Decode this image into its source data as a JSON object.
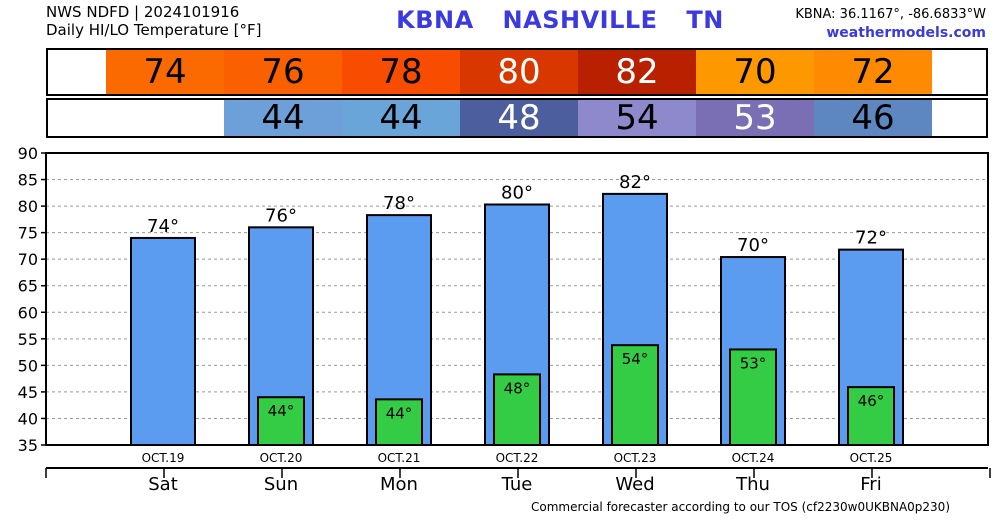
{
  "header": {
    "line1": "NWS NDFD | 2024101916",
    "line2": "Daily HI/LO Temperature [°F]",
    "station": "KBNA",
    "city": "NASHVILLE",
    "state": "TN",
    "coords": "KBNA: 36.1167°, -86.6833°W",
    "site": "weathermodels.com"
  },
  "hi_strip": [
    {
      "value": "74",
      "color": "#fa6a00",
      "text_color": "#000000"
    },
    {
      "value": "76",
      "color": "#fa6000",
      "text_color": "#000000"
    },
    {
      "value": "78",
      "color": "#f84c00",
      "text_color": "#000000"
    },
    {
      "value": "80",
      "color": "#d83800",
      "text_color": "#ffffff"
    },
    {
      "value": "82",
      "color": "#b82000",
      "text_color": "#ffffff"
    },
    {
      "value": "70",
      "color": "#fd9800",
      "text_color": "#000000"
    },
    {
      "value": "72",
      "color": "#fd8a00",
      "text_color": "#000000"
    }
  ],
  "lo_strip": [
    {
      "value": "",
      "color": "#ffffff",
      "text_color": "#000000"
    },
    {
      "value": "44",
      "color": "#6d9fd8",
      "text_color": "#000000"
    },
    {
      "value": "44",
      "color": "#6aa5da",
      "text_color": "#000000"
    },
    {
      "value": "48",
      "color": "#4d5e9e",
      "text_color": "#ffffff"
    },
    {
      "value": "54",
      "color": "#8e88cc",
      "text_color": "#000000"
    },
    {
      "value": "53",
      "color": "#7a6fb4",
      "text_color": "#ffffff"
    },
    {
      "value": "46",
      "color": "#5d87c0",
      "text_color": "#000000"
    }
  ],
  "footer": "Commercial forecaster according to our TOS (cf2230w0UKBNA0p230)",
  "chart_data": {
    "type": "bar",
    "categories": [
      "Sat",
      "Sun",
      "Mon",
      "Tue",
      "Wed",
      "Thu",
      "Fri"
    ],
    "dates": [
      "OCT.19",
      "OCT.20",
      "OCT.21",
      "OCT.22",
      "OCT.23",
      "OCT.24",
      "OCT.25"
    ],
    "series": [
      {
        "name": "",
        "values": [
          74,
          76,
          78.3,
          80.3,
          82.3,
          70.4,
          71.8
        ],
        "labels": [
          "74°",
          "76°",
          "78°",
          "80°",
          "82°",
          "70°",
          "72°"
        ],
        "color": "#5b9cf0"
      },
      {
        "name": "",
        "values": [
          null,
          44,
          43.6,
          48.3,
          53.8,
          53,
          45.9
        ],
        "labels": [
          "",
          "44°",
          "44°",
          "48°",
          "54°",
          "53°",
          "46°"
        ],
        "color": "#33cc44"
      }
    ],
    "ylim": [
      35,
      90
    ],
    "yticks": [
      35,
      40,
      45,
      50,
      55,
      60,
      65,
      70,
      75,
      80,
      85,
      90
    ],
    "grid": true
  }
}
